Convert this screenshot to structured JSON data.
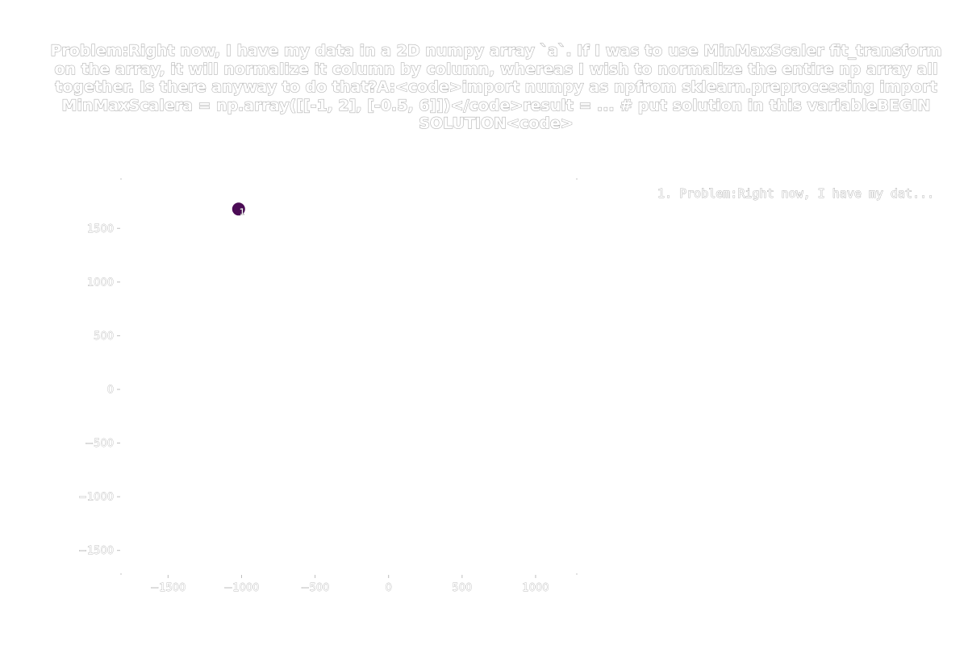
{
  "chart_data": {
    "type": "scatter",
    "title": "Problem:Right now, I have my data in a 2D numpy array `a`. If I was to use MinMaxScaler fit_transform on the array, it will normalize it column by column, whereas I wish to normalize the entire np array all together. Is there anyway to do that?A:<code>import numpy as npfrom sklearn.preprocessing import MinMaxScalera = np.array([[-1, 2], [-0.5, 6]])</code>result = ... # put solution in this variableBEGIN SOLUTION<code>",
    "xlabel": "",
    "ylabel": "",
    "xlim": [
      -1820,
      1280
    ],
    "ylim": [
      -1720,
      1960
    ],
    "xticks": [
      -1500,
      -1000,
      -500,
      0,
      500,
      1000
    ],
    "yticks": [
      -1500,
      -1000,
      -500,
      0,
      500,
      1000,
      1500
    ],
    "xtick_labels": [
      "−1500",
      "−1000",
      "−500",
      "0",
      "500",
      "1000"
    ],
    "ytick_labels": [
      "−1500",
      "−1000",
      "−500",
      "0",
      "500",
      "1000",
      "1500"
    ],
    "grid": false,
    "legend_position": "top-right",
    "series": [
      {
        "name": "1. Problem:Right now, I have my dat...",
        "color": "#4b0c55",
        "points": [
          {
            "x": -1020,
            "y": 1680,
            "label": "1"
          }
        ]
      }
    ]
  }
}
